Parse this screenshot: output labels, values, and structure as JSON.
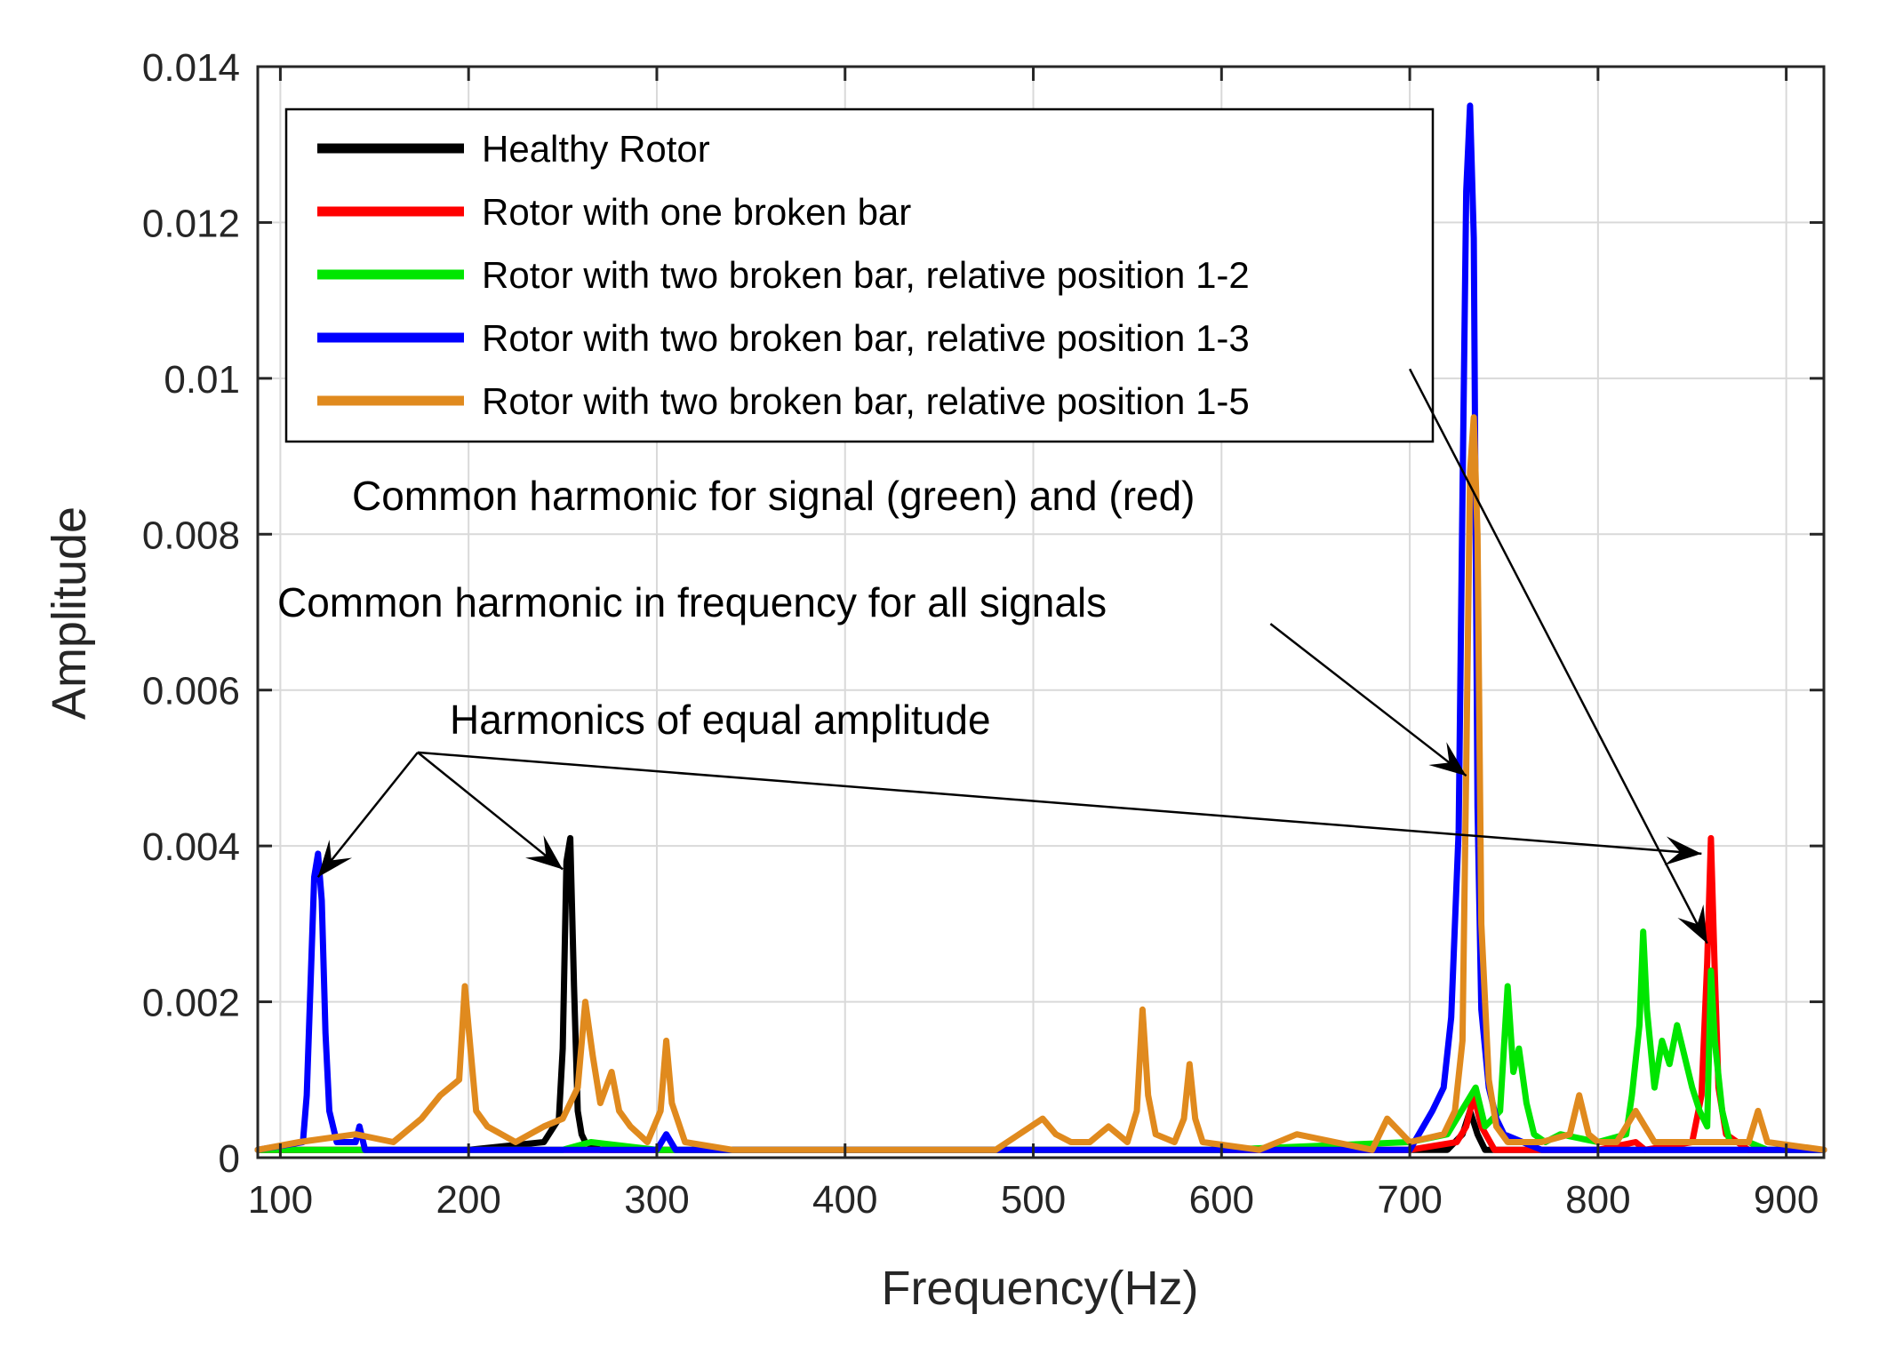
{
  "chart_data": {
    "type": "line",
    "title": "",
    "xlabel": "Frequency(Hz)",
    "ylabel": "Amplitude",
    "xlim": [
      88,
      920
    ],
    "ylim": [
      0,
      0.014
    ],
    "xticks": [
      100,
      200,
      300,
      400,
      500,
      600,
      700,
      800,
      900
    ],
    "yticks": [
      0,
      0.002,
      0.004,
      0.006,
      0.008,
      0.01,
      0.012,
      0.014
    ],
    "xtick_labels": [
      "100",
      "200",
      "300",
      "400",
      "500",
      "600",
      "700",
      "800",
      "900"
    ],
    "ytick_labels": [
      "0",
      "0.002",
      "0.004",
      "0.006",
      "0.008",
      "0.01",
      "0.012",
      "0.014"
    ],
    "grid": true,
    "legend_position": "top-left",
    "series": [
      {
        "name": "Healthy Rotor",
        "color": "#000000",
        "x": [
          88,
          200,
          240,
          248,
          250,
          252,
          254,
          256,
          258,
          260,
          262,
          270,
          300,
          500,
          720,
          728,
          732,
          736,
          740,
          920
        ],
        "y": [
          0.0001,
          0.0001,
          0.0002,
          0.0005,
          0.0014,
          0.0038,
          0.0041,
          0.0022,
          0.0006,
          0.0003,
          0.0002,
          0.0001,
          0.0001,
          0.0001,
          0.0001,
          0.0003,
          0.0006,
          0.0003,
          0.0001,
          0.0001
        ]
      },
      {
        "name": "Rotor with one broken bar",
        "color": "#ff0000",
        "x": [
          88,
          700,
          725,
          730,
          734,
          738,
          745,
          800,
          820,
          825,
          850,
          855,
          858,
          860,
          862,
          864,
          868,
          880,
          920
        ],
        "y": [
          0.0001,
          0.0001,
          0.0002,
          0.0004,
          0.0008,
          0.0004,
          0.0001,
          0.0001,
          0.0002,
          0.0001,
          0.0002,
          0.0008,
          0.0025,
          0.0041,
          0.0024,
          0.0009,
          0.0003,
          0.0001,
          0.0001
        ]
      },
      {
        "name": "Rotor with two broken bar, relative position 1-2",
        "color": "#00e600",
        "x": [
          88,
          150,
          250,
          265,
          300,
          600,
          700,
          720,
          735,
          740,
          748,
          752,
          755,
          758,
          762,
          766,
          772,
          780,
          800,
          815,
          818,
          822,
          824,
          826,
          830,
          834,
          838,
          842,
          846,
          850,
          854,
          858,
          860,
          862,
          866,
          870,
          880,
          890,
          920
        ],
        "y": [
          0.0001,
          0.0001,
          0.0001,
          0.0002,
          0.0001,
          0.0001,
          0.0002,
          0.0003,
          0.0009,
          0.0004,
          0.0006,
          0.0022,
          0.0011,
          0.0014,
          0.0007,
          0.0003,
          0.0002,
          0.0003,
          0.0002,
          0.0003,
          0.0008,
          0.0017,
          0.0029,
          0.0019,
          0.0009,
          0.0015,
          0.0012,
          0.0017,
          0.0013,
          0.0009,
          0.0006,
          0.0004,
          0.0024,
          0.0015,
          0.0006,
          0.0002,
          0.0002,
          0.0001,
          0.0001
        ]
      },
      {
        "name": "Rotor with two broken bar, relative position 1-3",
        "color": "#0000ff",
        "x": [
          88,
          112,
          114,
          116,
          118,
          120,
          122,
          124,
          126,
          130,
          140,
          142,
          145,
          160,
          300,
          305,
          310,
          600,
          700,
          712,
          718,
          722,
          726,
          728,
          730,
          732,
          734,
          736,
          738,
          742,
          746,
          750,
          760,
          770,
          920
        ],
        "y": [
          0.0001,
          0.0002,
          0.0008,
          0.0022,
          0.0036,
          0.0039,
          0.0033,
          0.0016,
          0.0006,
          0.0002,
          0.0002,
          0.0004,
          0.0001,
          0.0001,
          0.0001,
          0.0003,
          0.0001,
          0.0001,
          0.0001,
          0.0006,
          0.0009,
          0.0018,
          0.0042,
          0.0085,
          0.0124,
          0.0135,
          0.0118,
          0.0045,
          0.0019,
          0.0009,
          0.0005,
          0.0003,
          0.0002,
          0.0001,
          0.0001
        ]
      },
      {
        "name": "Rotor with two broken bar, relative position 1-5",
        "color": "#e08a1e",
        "x": [
          88,
          110,
          140,
          160,
          175,
          185,
          195,
          198,
          201,
          204,
          210,
          225,
          240,
          250,
          258,
          262,
          266,
          270,
          276,
          280,
          286,
          295,
          302,
          305,
          308,
          315,
          340,
          400,
          480,
          505,
          512,
          520,
          530,
          540,
          550,
          555,
          558,
          561,
          565,
          575,
          580,
          583,
          586,
          590,
          620,
          640,
          680,
          688,
          700,
          718,
          724,
          728,
          730,
          732,
          734,
          736,
          738,
          742,
          746,
          752,
          770,
          785,
          790,
          795,
          800,
          810,
          820,
          830,
          860,
          880,
          885,
          890,
          920
        ],
        "y": [
          0.0001,
          0.0002,
          0.0003,
          0.0002,
          0.0005,
          0.0008,
          0.001,
          0.0022,
          0.0014,
          0.0006,
          0.0004,
          0.0002,
          0.0004,
          0.0005,
          0.0009,
          0.002,
          0.0013,
          0.0007,
          0.0011,
          0.0006,
          0.0004,
          0.0002,
          0.0006,
          0.0015,
          0.0007,
          0.0002,
          0.0001,
          0.0001,
          0.0001,
          0.0005,
          0.0003,
          0.0002,
          0.0002,
          0.0004,
          0.0002,
          0.0006,
          0.0019,
          0.0008,
          0.0003,
          0.0002,
          0.0005,
          0.0012,
          0.0005,
          0.0002,
          0.0001,
          0.0003,
          0.0001,
          0.0005,
          0.0002,
          0.0003,
          0.0006,
          0.0015,
          0.005,
          0.0088,
          0.0095,
          0.008,
          0.003,
          0.001,
          0.0004,
          0.0002,
          0.0002,
          0.0003,
          0.0008,
          0.0003,
          0.0002,
          0.0002,
          0.0006,
          0.0002,
          0.0002,
          0.0002,
          0.0006,
          0.0002,
          0.0001
        ]
      }
    ],
    "annotations": [
      {
        "text": "Common harmonic for signal (green) and (red)",
        "arrows": [
          {
            "from": [
              700,
              0.01012
            ],
            "to": [
              858,
              0.00275
            ]
          }
        ]
      },
      {
        "text": "Common harmonic in frequency for all signals",
        "arrows": [
          {
            "from": [
              626,
              0.00685
            ],
            "to": [
              730,
              0.0049
            ]
          }
        ]
      },
      {
        "text": "Harmonics of equal amplitude",
        "arrows": [
          {
            "from": [
              173,
              0.0052
            ],
            "to": [
              120,
              0.0036
            ]
          },
          {
            "from": [
              173,
              0.0052
            ],
            "to": [
              250,
              0.0037
            ]
          },
          {
            "from": [
              173,
              0.0052
            ],
            "to": [
              855,
              0.0039
            ]
          }
        ]
      }
    ]
  }
}
